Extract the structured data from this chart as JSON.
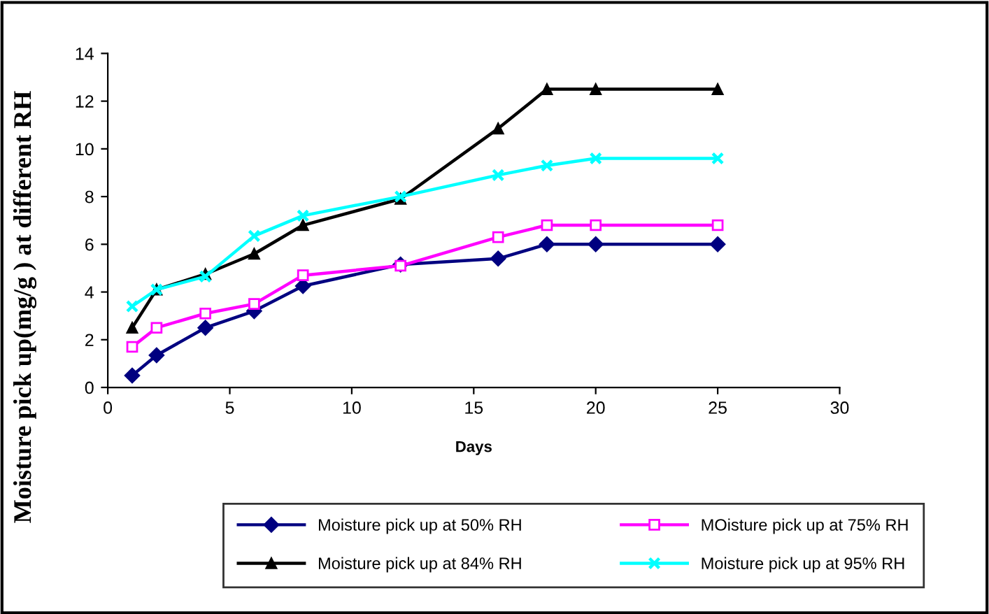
{
  "chart_data": {
    "type": "line",
    "xlabel": "Days",
    "ylabel": "Moisture pick up(mg/g ) at different RH",
    "x": [
      1,
      2,
      4,
      6,
      8,
      12,
      16,
      18,
      20,
      25
    ],
    "series": [
      {
        "name": "Moisture pick up at 50% RH",
        "color": "#000080",
        "marker": "diamond",
        "values": [
          0.5,
          1.35,
          2.5,
          3.2,
          4.25,
          5.15,
          5.4,
          6.0,
          6.0,
          6.0
        ]
      },
      {
        "name": "MOisture pick up at 75% RH",
        "color": "#ff00ff",
        "marker": "square",
        "values": [
          1.7,
          2.5,
          3.1,
          3.5,
          4.7,
          5.1,
          6.3,
          6.8,
          6.8,
          6.8
        ]
      },
      {
        "name": "Moisture pick up at 84% RH",
        "color": "#000000",
        "marker": "triangle",
        "values": [
          2.5,
          4.1,
          4.75,
          5.6,
          6.8,
          7.9,
          10.85,
          12.5,
          12.5,
          12.5
        ]
      },
      {
        "name": "Moisture pick up at 95% RH",
        "color": "#00ffff",
        "marker": "cross",
        "values": [
          3.4,
          4.1,
          4.65,
          6.35,
          7.2,
          8.0,
          8.9,
          9.3,
          9.6,
          9.6
        ]
      }
    ],
    "xlim": [
      0,
      30
    ],
    "xticks": [
      0,
      5,
      10,
      15,
      20,
      25,
      30
    ],
    "ylim": [
      0,
      14
    ],
    "yticks": [
      0,
      2,
      4,
      6,
      8,
      10,
      12,
      14
    ],
    "grid": false,
    "legend": "bottom",
    "line_style": "solid"
  }
}
